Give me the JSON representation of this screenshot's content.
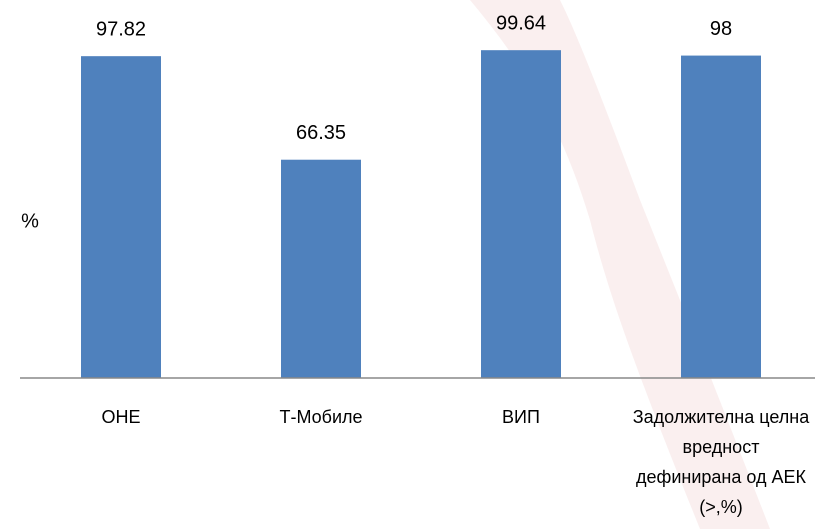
{
  "chart_data": {
    "type": "bar",
    "y_label": "%",
    "categories": [
      "ОНЕ",
      "Т-Мобиле",
      "ВИП",
      "Задолжителна целна вредност дефинирана од АЕК (>,%)"
    ],
    "values": [
      97.82,
      66.35,
      99.64,
      98
    ],
    "color": "#4f81bd",
    "ylim": [
      0,
      100
    ]
  }
}
